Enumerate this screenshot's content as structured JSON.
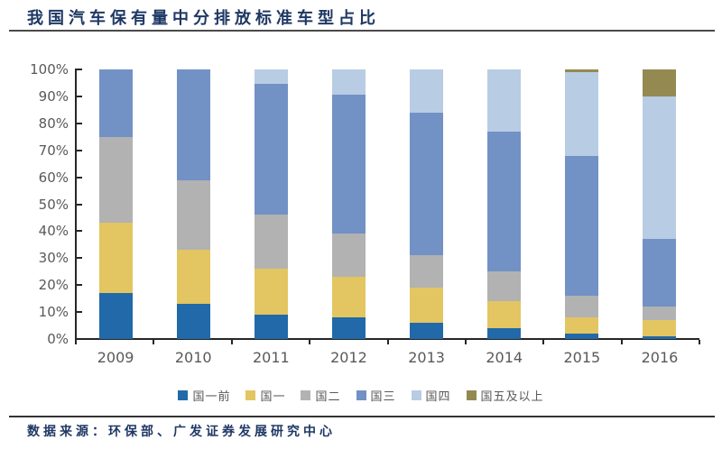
{
  "title": "我国汽车保有量中分排放标准车型占比",
  "source": "数据来源：环保部、广发证券发展研究中心",
  "chart_data": {
    "type": "bar",
    "stacked": true,
    "title": "我国汽车保有量中分排放标准车型占比",
    "categories": [
      "2009",
      "2010",
      "2011",
      "2012",
      "2013",
      "2014",
      "2015",
      "2016"
    ],
    "series": [
      {
        "name": "国一前",
        "color": "#2169A8",
        "values": [
          17,
          13,
          9,
          8,
          6,
          4,
          2,
          1
        ]
      },
      {
        "name": "国一",
        "color": "#E3C562",
        "values": [
          26,
          20,
          17,
          15,
          13,
          10,
          6,
          6
        ]
      },
      {
        "name": "国二",
        "color": "#B2B2B2",
        "values": [
          32,
          26,
          20,
          16,
          12,
          11,
          8,
          5
        ]
      },
      {
        "name": "国三",
        "color": "#7291C5",
        "values": [
          25,
          41,
          48.5,
          51.5,
          53,
          52,
          52,
          25
        ]
      },
      {
        "name": "国四",
        "color": "#B8CCE4",
        "values": [
          0,
          0,
          5.5,
          9.5,
          16,
          23,
          31,
          53
        ]
      },
      {
        "name": "国五及以上",
        "color": "#948A51",
        "values": [
          0,
          0,
          0,
          0,
          0,
          0,
          1,
          10
        ]
      }
    ],
    "y_ticks": [
      "100%",
      "90%",
      "80%",
      "70%",
      "60%",
      "50%",
      "40%",
      "30%",
      "20%",
      "10%",
      "0%"
    ],
    "ylim": [
      0,
      100
    ],
    "unit": "percent",
    "grid": false,
    "legend_position": "bottom",
    "axis_color": "#262626",
    "tick_label_color": "#595959",
    "title_color": "#1F3864"
  }
}
